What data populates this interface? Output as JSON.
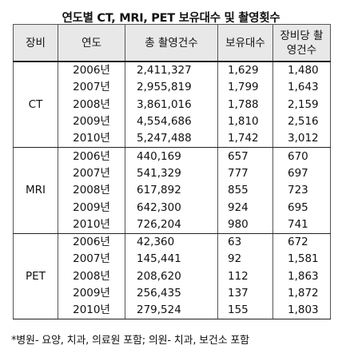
{
  "title": "연도별 CT, MRI, PET 보유대수 및 촬영횟수",
  "headers": {
    "equipment": "장비",
    "year": "연도",
    "total": "총 촬영건수",
    "owned": "보유대수",
    "per_unit_line1": "장비당 촬",
    "per_unit_line2": "영건수"
  },
  "groups": [
    {
      "equipment": "CT",
      "rows": [
        {
          "year": "2006년",
          "total": "2,411,327",
          "owned": "1,629",
          "per_unit": "1,480"
        },
        {
          "year": "2007년",
          "total": "2,955,819",
          "owned": "1,799",
          "per_unit": "1,643"
        },
        {
          "year": "2008년",
          "total": "3,861,016",
          "owned": "1,788",
          "per_unit": "2,159"
        },
        {
          "year": "2009년",
          "total": "4,554,686",
          "owned": "1,810",
          "per_unit": "2,516"
        },
        {
          "year": "2010년",
          "total": "5,247,488",
          "owned": "1,742",
          "per_unit": "3,012"
        }
      ]
    },
    {
      "equipment": "MRI",
      "rows": [
        {
          "year": "2006년",
          "total": "440,169",
          "owned": "657",
          "per_unit": "670"
        },
        {
          "year": "2007년",
          "total": "541,329",
          "owned": "777",
          "per_unit": "697"
        },
        {
          "year": "2008년",
          "total": "617,892",
          "owned": "855",
          "per_unit": "723"
        },
        {
          "year": "2009년",
          "total": "642,300",
          "owned": "924",
          "per_unit": "695"
        },
        {
          "year": "2010년",
          "total": "726,204",
          "owned": "980",
          "per_unit": "741"
        }
      ]
    },
    {
      "equipment": "PET",
      "rows": [
        {
          "year": "2006년",
          "total": "42,360",
          "owned": "63",
          "per_unit": "672"
        },
        {
          "year": "2007년",
          "total": "145,441",
          "owned": "92",
          "per_unit": "1,581"
        },
        {
          "year": "2008년",
          "total": "208,620",
          "owned": "112",
          "per_unit": "1,863"
        },
        {
          "year": "2009년",
          "total": "256,435",
          "owned": "137",
          "per_unit": "1,872"
        },
        {
          "year": "2010년",
          "total": "279,524",
          "owned": "155",
          "per_unit": "1,803"
        }
      ]
    }
  ],
  "footnote": "*병원- 요양, 치과, 의료원 포함; 의원- 치과, 보건소 포함"
}
